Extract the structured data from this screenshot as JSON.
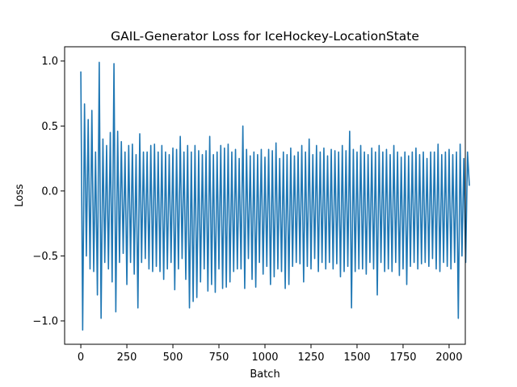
{
  "chart_data": {
    "type": "line",
    "title": "GAIL-Generator Loss for IceHockey-LocationState",
    "xlabel": "Batch",
    "ylabel": "Loss",
    "xlim": [
      -88,
      2088
    ],
    "ylim": [
      -1.18,
      1.11
    ],
    "xticks": [
      {
        "value": 0,
        "label": "0"
      },
      {
        "value": 250,
        "label": "250"
      },
      {
        "value": 500,
        "label": "500"
      },
      {
        "value": 750,
        "label": "750"
      },
      {
        "value": 1000,
        "label": "1000"
      },
      {
        "value": 1250,
        "label": "1250"
      },
      {
        "value": 1500,
        "label": "1500"
      },
      {
        "value": 1750,
        "label": "1750"
      },
      {
        "value": 2000,
        "label": "2000"
      }
    ],
    "yticks": [
      {
        "value": -1.0,
        "label": "−1.0"
      },
      {
        "value": -0.5,
        "label": "−0.5"
      },
      {
        "value": 0.0,
        "label": "0.0"
      },
      {
        "value": 0.5,
        "label": "0.5"
      },
      {
        "value": 1.0,
        "label": "1.0"
      }
    ],
    "grid": false,
    "series": [
      {
        "color": "#1f77b4",
        "x_start": 0,
        "x_step": 10,
        "values": [
          0.92,
          -1.07,
          0.67,
          -0.5,
          0.55,
          -0.6,
          0.62,
          -0.62,
          0.3,
          -0.8,
          0.99,
          -0.98,
          0.4,
          -0.55,
          0.35,
          -0.6,
          0.45,
          -0.7,
          0.98,
          -0.93,
          0.46,
          -0.55,
          0.38,
          -0.48,
          0.3,
          -0.72,
          0.35,
          -0.55,
          0.36,
          -0.64,
          0.28,
          -0.9,
          0.44,
          -0.55,
          0.3,
          -0.52,
          0.3,
          -0.6,
          0.35,
          -0.62,
          0.36,
          -0.58,
          0.3,
          -0.62,
          0.35,
          -0.68,
          0.3,
          -0.6,
          0.28,
          -0.55,
          0.33,
          -0.76,
          0.32,
          -0.6,
          0.42,
          -0.52,
          0.3,
          -0.68,
          0.35,
          -0.9,
          0.3,
          -0.85,
          0.35,
          -0.82,
          0.31,
          -0.7,
          0.28,
          -0.6,
          0.31,
          -0.77,
          0.42,
          -0.72,
          0.28,
          -0.78,
          0.3,
          -0.6,
          0.35,
          -0.75,
          0.33,
          -0.74,
          0.36,
          -0.7,
          0.3,
          -0.62,
          0.32,
          -0.6,
          0.25,
          -0.6,
          0.5,
          -0.75,
          0.32,
          -0.52,
          0.27,
          -0.68,
          0.3,
          -0.74,
          0.28,
          -0.55,
          0.32,
          -0.64,
          0.26,
          -0.58,
          0.32,
          -0.72,
          0.31,
          -0.66,
          0.37,
          -0.6,
          0.25,
          -0.62,
          0.3,
          -0.75,
          0.28,
          -0.72,
          0.33,
          -0.58,
          0.27,
          -0.55,
          0.3,
          -0.56,
          0.35,
          -0.7,
          0.3,
          -0.58,
          0.4,
          -0.6,
          0.28,
          -0.52,
          0.35,
          -0.62,
          0.3,
          -0.55,
          0.33,
          -0.6,
          0.27,
          -0.55,
          0.32,
          -0.6,
          0.31,
          -0.56,
          0.3,
          -0.66,
          0.35,
          -0.62,
          0.31,
          -0.58,
          0.46,
          -0.9,
          0.32,
          -0.62,
          0.3,
          -0.6,
          0.35,
          -0.6,
          0.3,
          -0.64,
          0.28,
          -0.55,
          0.33,
          -0.6,
          0.3,
          -0.8,
          0.35,
          -0.55,
          0.3,
          -0.62,
          0.32,
          -0.6,
          0.28,
          -0.62,
          0.35,
          -0.55,
          0.3,
          -0.65,
          0.26,
          -0.6,
          0.3,
          -0.72,
          0.27,
          -0.58,
          0.3,
          -0.55,
          0.33,
          -0.6,
          0.28,
          -0.56,
          0.3,
          -0.55,
          0.25,
          -0.58,
          0.3,
          -0.52,
          0.3,
          -0.6,
          0.36,
          -0.62,
          0.28,
          -0.55,
          0.3,
          -0.58,
          0.32,
          -0.6,
          0.28,
          -0.55,
          0.3,
          -0.98,
          0.36,
          -0.5,
          0.25,
          -0.55,
          0.3,
          0.04
        ]
      }
    ]
  }
}
